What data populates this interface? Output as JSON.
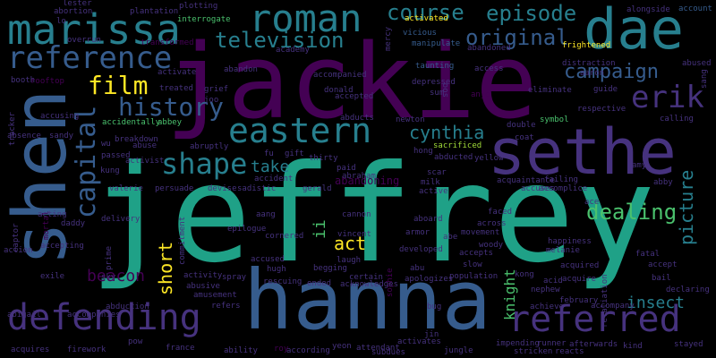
{
  "palette": {
    "background": "#000000",
    "colors": [
      "#440154",
      "#46327e",
      "#365c8d",
      "#277f8e",
      "#1fa187",
      "#4ac16d",
      "#a0da39",
      "#fde725"
    ]
  },
  "word_cloud": {
    "words": [
      {
        "text": "jeffrey",
        "rank": 1,
        "color": "#1fa187"
      },
      {
        "text": "jackie",
        "rank": 2,
        "color": "#440154"
      },
      {
        "text": "hanna",
        "rank": 3,
        "color": "#365c8d"
      },
      {
        "text": "shen",
        "rank": 4,
        "color": "#365c8d"
      },
      {
        "text": "sethe",
        "rank": 5,
        "color": "#46327e"
      },
      {
        "text": "dae",
        "rank": 6,
        "color": "#277f8e"
      },
      {
        "text": "marissa",
        "rank": 7,
        "color": "#277f8e"
      },
      {
        "text": "roman",
        "rank": 8,
        "color": "#277f8e"
      },
      {
        "text": "defending",
        "rank": 9,
        "color": "#46327e"
      },
      {
        "text": "referred",
        "rank": 10,
        "color": "#46327e"
      },
      {
        "text": "reference",
        "rank": 11,
        "color": "#365c8d"
      },
      {
        "text": "eastern",
        "rank": 12,
        "color": "#277f8e"
      },
      {
        "text": "erik",
        "rank": 13,
        "color": "#46327e"
      },
      {
        "text": "capital",
        "rank": 14,
        "color": "#365c8d"
      },
      {
        "text": "shape",
        "rank": 15,
        "color": "#277f8e"
      },
      {
        "text": "history",
        "rank": 16,
        "color": "#365c8d"
      },
      {
        "text": "film",
        "rank": 17,
        "color": "#fde725"
      },
      {
        "text": "course",
        "rank": 18,
        "color": "#277f8e"
      },
      {
        "text": "episode",
        "rank": 19,
        "color": "#277f8e"
      },
      {
        "text": "television",
        "rank": 20,
        "color": "#277f8e"
      },
      {
        "text": "original",
        "rank": 21,
        "color": "#365c8d"
      },
      {
        "text": "campaign",
        "rank": 22,
        "color": "#365c8d"
      },
      {
        "text": "picture",
        "rank": 23,
        "color": "#277f8e"
      },
      {
        "text": "cynthia",
        "rank": 24,
        "color": "#277f8e"
      },
      {
        "text": "short",
        "rank": 25,
        "color": "#fde725"
      },
      {
        "text": "act",
        "rank": 26,
        "color": "#fde725"
      },
      {
        "text": "dealing",
        "rank": 27,
        "color": "#4ac16d"
      },
      {
        "text": "take",
        "rank": 28,
        "color": "#277f8e"
      },
      {
        "text": "beacon",
        "rank": 29,
        "color": "#440154"
      },
      {
        "text": "ii",
        "rank": 30,
        "color": "#4ac16d"
      },
      {
        "text": "insect",
        "rank": 31,
        "color": "#277f8e"
      },
      {
        "text": "knight",
        "rank": 32,
        "color": "#4ac16d"
      },
      {
        "text": "abandoning",
        "rank": 33,
        "color": "#440154"
      },
      {
        "text": "lester",
        "rank": 34,
        "color": "#46327e"
      },
      {
        "text": "abortion",
        "rank": 35,
        "color": "#46327e"
      },
      {
        "text": "plantation",
        "rank": 36,
        "color": "#46327e"
      },
      {
        "text": "plotting",
        "rank": 37,
        "color": "#46327e"
      },
      {
        "text": "interrogate",
        "rank": 38,
        "color": "#4ac16d"
      },
      {
        "text": "activated",
        "rank": 39,
        "color": "#fde725"
      },
      {
        "text": "alongside",
        "rank": 40,
        "color": "#46327e"
      },
      {
        "text": "account",
        "rank": 41,
        "color": "#365c8d"
      },
      {
        "text": "lo",
        "rank": 42,
        "color": "#46327e"
      },
      {
        "text": "overrun",
        "rank": 43,
        "color": "#46327e"
      },
      {
        "text": "transformed",
        "rank": 44,
        "color": "#440154"
      },
      {
        "text": "academy",
        "rank": 45,
        "color": "#46327e"
      },
      {
        "text": "vicious",
        "rank": 46,
        "color": "#365c8d"
      },
      {
        "text": "manipulate",
        "rank": 47,
        "color": "#365c8d"
      },
      {
        "text": "mercy",
        "rank": 48,
        "color": "#46327e"
      },
      {
        "text": "abandoned",
        "rank": 49,
        "color": "#46327e"
      },
      {
        "text": "frightened",
        "rank": 50,
        "color": "#fde725"
      },
      {
        "text": "aaron",
        "rank": 51,
        "color": "#46327e"
      },
      {
        "text": "distraction",
        "rank": 52,
        "color": "#46327e"
      },
      {
        "text": "abused",
        "rank": 53,
        "color": "#46327e"
      },
      {
        "text": "sang",
        "rank": 54,
        "color": "#46327e"
      },
      {
        "text": "booth",
        "rank": 55,
        "color": "#46327e"
      },
      {
        "text": "rooftop",
        "rank": 56,
        "color": "#440154"
      },
      {
        "text": "activate",
        "rank": 57,
        "color": "#46327e"
      },
      {
        "text": "abandon",
        "rank": 58,
        "color": "#46327e"
      },
      {
        "text": "accompanied",
        "rank": 59,
        "color": "#46327e"
      },
      {
        "text": "taunting",
        "rank": 60,
        "color": "#365c8d"
      },
      {
        "text": "access",
        "rank": 61,
        "color": "#46327e"
      },
      {
        "text": "soo",
        "rank": 62,
        "color": "#46327e"
      },
      {
        "text": "eliminate",
        "rank": 63,
        "color": "#46327e"
      },
      {
        "text": "guide",
        "rank": 64,
        "color": "#46327e"
      },
      {
        "text": "tracker",
        "rank": 65,
        "color": "#46327e"
      },
      {
        "text": "accusing",
        "rank": 66,
        "color": "#46327e"
      },
      {
        "text": "treated",
        "rank": 67,
        "color": "#46327e"
      },
      {
        "text": "grief",
        "rank": 68,
        "color": "#46327e"
      },
      {
        "text": "joo",
        "rank": 69,
        "color": "#46327e"
      },
      {
        "text": "donald",
        "rank": 70,
        "color": "#46327e"
      },
      {
        "text": "accepted",
        "rank": 71,
        "color": "#46327e"
      },
      {
        "text": "depressed",
        "rank": 72,
        "color": "#46327e"
      },
      {
        "text": "sum",
        "rank": 73,
        "color": "#46327e"
      },
      {
        "text": "anjo",
        "rank": 74,
        "color": "#440154"
      },
      {
        "text": "respective",
        "rank": 75,
        "color": "#46327e"
      },
      {
        "text": "absence",
        "rank": 76,
        "color": "#46327e"
      },
      {
        "text": "sandy",
        "rank": 77,
        "color": "#46327e"
      },
      {
        "text": "accidentally",
        "rank": 78,
        "color": "#4ac16d"
      },
      {
        "text": "abbey",
        "rank": 79,
        "color": "#4ac16d"
      },
      {
        "text": "abducts",
        "rank": 80,
        "color": "#46327e"
      },
      {
        "text": "newton",
        "rank": 81,
        "color": "#46327e"
      },
      {
        "text": "symbol",
        "rank": 82,
        "color": "#4ac16d"
      },
      {
        "text": "calling",
        "rank": 83,
        "color": "#46327e"
      },
      {
        "text": "double",
        "rank": 84,
        "color": "#46327e"
      },
      {
        "text": "coat",
        "rank": 85,
        "color": "#46327e"
      },
      {
        "text": "wu",
        "rank": 86,
        "color": "#46327e"
      },
      {
        "text": "breakdown",
        "rank": 87,
        "color": "#46327e"
      },
      {
        "text": "abuse",
        "rank": 88,
        "color": "#46327e"
      },
      {
        "text": "abruptly",
        "rank": 89,
        "color": "#46327e"
      },
      {
        "text": "captor",
        "rank": 90,
        "color": "#46327e"
      },
      {
        "text": "passed",
        "rank": 91,
        "color": "#46327e"
      },
      {
        "text": "activist",
        "rank": 92,
        "color": "#46327e"
      },
      {
        "text": "gift",
        "rank": 93,
        "color": "#46327e"
      },
      {
        "text": "thirty",
        "rank": 94,
        "color": "#46327e"
      },
      {
        "text": "hong",
        "rank": 95,
        "color": "#46327e"
      },
      {
        "text": "sacrificed",
        "rank": 96,
        "color": "#a0da39"
      },
      {
        "text": "yellow",
        "rank": 97,
        "color": "#46327e"
      },
      {
        "text": "abducted",
        "rank": 98,
        "color": "#46327e"
      },
      {
        "text": "kung",
        "rank": 99,
        "color": "#46327e"
      },
      {
        "text": "fu",
        "rank": 100,
        "color": "#46327e"
      },
      {
        "text": "accident",
        "rank": 101,
        "color": "#46327e"
      },
      {
        "text": "amy",
        "rank": 102,
        "color": "#46327e"
      },
      {
        "text": "paid",
        "rank": 103,
        "color": "#46327e"
      },
      {
        "text": "abraham",
        "rank": 104,
        "color": "#46327e"
      },
      {
        "text": "scar",
        "rank": 105,
        "color": "#46327e"
      },
      {
        "text": "failing",
        "rank": 106,
        "color": "#46327e"
      },
      {
        "text": "abby",
        "rank": 107,
        "color": "#46327e"
      },
      {
        "text": "mortal",
        "rank": 108,
        "color": "#440154"
      },
      {
        "text": "valerie",
        "rank": 109,
        "color": "#46327e"
      },
      {
        "text": "persuade",
        "rank": 110,
        "color": "#46327e"
      },
      {
        "text": "devise",
        "rank": 111,
        "color": "#46327e"
      },
      {
        "text": "sadistic",
        "rank": 112,
        "color": "#46327e"
      },
      {
        "text": "gerald",
        "rank": 113,
        "color": "#46327e"
      },
      {
        "text": "milk",
        "rank": 114,
        "color": "#46327e"
      },
      {
        "text": "active",
        "rank": 115,
        "color": "#46327e"
      },
      {
        "text": "acquaintance",
        "rank": 116,
        "color": "#46327e"
      },
      {
        "text": "accuses",
        "rank": 117,
        "color": "#46327e"
      },
      {
        "text": "accomplice",
        "rank": 118,
        "color": "#46327e"
      },
      {
        "text": "acting",
        "rank": 119,
        "color": "#46327e"
      },
      {
        "text": "daddy",
        "rank": 120,
        "color": "#46327e"
      },
      {
        "text": "aang",
        "rank": 121,
        "color": "#46327e"
      },
      {
        "text": "cannon",
        "rank": 122,
        "color": "#46327e"
      },
      {
        "text": "aboard",
        "rank": 123,
        "color": "#46327e"
      },
      {
        "text": "faced",
        "rank": 124,
        "color": "#46327e"
      },
      {
        "text": "across",
        "rank": 125,
        "color": "#46327e"
      },
      {
        "text": "ace",
        "rank": 126,
        "color": "#46327e"
      },
      {
        "text": "accepting",
        "rank": 127,
        "color": "#46327e"
      },
      {
        "text": "delivery",
        "rank": 128,
        "color": "#46327e"
      },
      {
        "text": "prime",
        "rank": 129,
        "color": "#46327e"
      },
      {
        "text": "commitment",
        "rank": 130,
        "color": "#46327e"
      },
      {
        "text": "epilogue",
        "rank": 131,
        "color": "#46327e"
      },
      {
        "text": "cornered",
        "rank": 132,
        "color": "#46327e"
      },
      {
        "text": "vincent",
        "rank": 133,
        "color": "#46327e"
      },
      {
        "text": "armor",
        "rank": 134,
        "color": "#46327e"
      },
      {
        "text": "movement",
        "rank": 135,
        "color": "#46327e"
      },
      {
        "text": "abe",
        "rank": 136,
        "color": "#46327e"
      },
      {
        "text": "happiness",
        "rank": 137,
        "color": "#46327e"
      },
      {
        "text": "melanie",
        "rank": 138,
        "color": "#46327e"
      },
      {
        "text": "retaliation",
        "rank": 139,
        "color": "#46327e"
      },
      {
        "text": "action",
        "rank": 140,
        "color": "#46327e"
      },
      {
        "text": "laugh",
        "rank": 141,
        "color": "#46327e"
      },
      {
        "text": "developed",
        "rank": 142,
        "color": "#46327e"
      },
      {
        "text": "woody",
        "rank": 143,
        "color": "#46327e"
      },
      {
        "text": "accepts",
        "rank": 144,
        "color": "#46327e"
      },
      {
        "text": "fatal",
        "rank": 145,
        "color": "#46327e"
      },
      {
        "text": "accept",
        "rank": 146,
        "color": "#46327e"
      },
      {
        "text": "sophie",
        "rank": 147,
        "color": "#440154"
      },
      {
        "text": "abu",
        "rank": 148,
        "color": "#46327e"
      },
      {
        "text": "slow",
        "rank": 149,
        "color": "#46327e"
      },
      {
        "text": "acquired",
        "rank": 150,
        "color": "#46327e"
      },
      {
        "text": "accused",
        "rank": 151,
        "color": "#46327e"
      },
      {
        "text": "hugh",
        "rank": 152,
        "color": "#46327e"
      },
      {
        "text": "begging",
        "rank": 153,
        "color": "#46327e"
      },
      {
        "text": "kong",
        "rank": 154,
        "color": "#46327e"
      },
      {
        "text": "exile",
        "rank": 155,
        "color": "#46327e"
      },
      {
        "text": "sky",
        "rank": 156,
        "color": "#46327e"
      },
      {
        "text": "activity",
        "rank": 157,
        "color": "#46327e"
      },
      {
        "text": "spray",
        "rank": 158,
        "color": "#46327e"
      },
      {
        "text": "abusive",
        "rank": 159,
        "color": "#46327e"
      },
      {
        "text": "amusement",
        "rank": 160,
        "color": "#46327e"
      },
      {
        "text": "rescuing",
        "rank": 161,
        "color": "#46327e"
      },
      {
        "text": "ended",
        "rank": 162,
        "color": "#46327e"
      },
      {
        "text": "certain",
        "rank": 163,
        "color": "#46327e"
      },
      {
        "text": "acknowledges",
        "rank": 164,
        "color": "#46327e"
      },
      {
        "text": "apologizes",
        "rank": 165,
        "color": "#46327e"
      },
      {
        "text": "population",
        "rank": 166,
        "color": "#46327e"
      },
      {
        "text": "acid",
        "rank": 167,
        "color": "#46327e"
      },
      {
        "text": "acquire",
        "rank": 168,
        "color": "#46327e"
      },
      {
        "text": "nephew",
        "rank": 169,
        "color": "#46327e"
      },
      {
        "text": "bail",
        "rank": 170,
        "color": "#46327e"
      },
      {
        "text": "declaring",
        "rank": 171,
        "color": "#46327e"
      },
      {
        "text": "abduction",
        "rank": 172,
        "color": "#46327e"
      },
      {
        "text": "refers",
        "rank": 173,
        "color": "#46327e"
      },
      {
        "text": "bug",
        "rank": 174,
        "color": "#46327e"
      },
      {
        "text": "achieve",
        "rank": 175,
        "color": "#46327e"
      },
      {
        "text": "february",
        "rank": 176,
        "color": "#46327e"
      },
      {
        "text": "accompany",
        "rank": 177,
        "color": "#46327e"
      },
      {
        "text": "abigail",
        "rank": 178,
        "color": "#46327e"
      },
      {
        "text": "accompanies",
        "rank": 179,
        "color": "#46327e"
      },
      {
        "text": "pow",
        "rank": 180,
        "color": "#46327e"
      },
      {
        "text": "france",
        "rank": 181,
        "color": "#46327e"
      },
      {
        "text": "jin",
        "rank": 182,
        "color": "#46327e"
      },
      {
        "text": "activates",
        "rank": 183,
        "color": "#46327e"
      },
      {
        "text": "impending",
        "rank": 184,
        "color": "#46327e"
      },
      {
        "text": "runner",
        "rank": 185,
        "color": "#46327e"
      },
      {
        "text": "afterwards",
        "rank": 186,
        "color": "#46327e"
      },
      {
        "text": "kind",
        "rank": 187,
        "color": "#46327e"
      },
      {
        "text": "stayed",
        "rank": 188,
        "color": "#46327e"
      },
      {
        "text": "acquires",
        "rank": 189,
        "color": "#46327e"
      },
      {
        "text": "firework",
        "rank": 190,
        "color": "#46327e"
      },
      {
        "text": "ability",
        "rank": 191,
        "color": "#46327e"
      },
      {
        "text": "roy",
        "rank": 192,
        "color": "#440154"
      },
      {
        "text": "according",
        "rank": 193,
        "color": "#46327e"
      },
      {
        "text": "yeon",
        "rank": 194,
        "color": "#46327e"
      },
      {
        "text": "attendant",
        "rank": 195,
        "color": "#46327e"
      },
      {
        "text": "subdues",
        "rank": 196,
        "color": "#46327e"
      },
      {
        "text": "jungle",
        "rank": 197,
        "color": "#46327e"
      },
      {
        "text": "stricken",
        "rank": 198,
        "color": "#46327e"
      },
      {
        "text": "reacts",
        "rank": 199,
        "color": "#46327e"
      }
    ]
  }
}
